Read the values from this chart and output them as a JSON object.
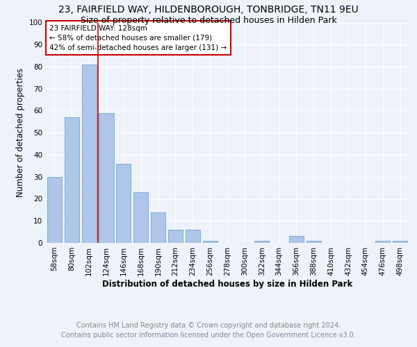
{
  "title": "23, FAIRFIELD WAY, HILDENBOROUGH, TONBRIDGE, TN11 9EU",
  "subtitle": "Size of property relative to detached houses in Hilden Park",
  "xlabel": "Distribution of detached houses by size in Hilden Park",
  "ylabel": "Number of detached properties",
  "footer_line1": "Contains HM Land Registry data © Crown copyright and database right 2024.",
  "footer_line2": "Contains public sector information licensed under the Open Government Licence v3.0.",
  "bar_labels": [
    "58sqm",
    "80sqm",
    "102sqm",
    "124sqm",
    "146sqm",
    "168sqm",
    "190sqm",
    "212sqm",
    "234sqm",
    "256sqm",
    "278sqm",
    "300sqm",
    "322sqm",
    "344sqm",
    "366sqm",
    "388sqm",
    "410sqm",
    "432sqm",
    "454sqm",
    "476sqm",
    "498sqm"
  ],
  "bar_values": [
    30,
    57,
    81,
    59,
    36,
    23,
    14,
    6,
    6,
    1,
    0,
    0,
    1,
    0,
    3,
    1,
    0,
    0,
    0,
    1,
    1
  ],
  "bar_color": "#aec6e8",
  "bar_edge_color": "#7aafd4",
  "ylim": [
    0,
    100
  ],
  "yticks": [
    0,
    10,
    20,
    30,
    40,
    50,
    60,
    70,
    80,
    90,
    100
  ],
  "property_line_color": "#cc0000",
  "annotation_text": "23 FAIRFIELD WAY: 128sqm\n← 58% of detached houses are smaller (179)\n42% of semi-detached houses are larger (131) →",
  "annotation_box_color": "#cc0000",
  "background_color": "#eef2f9",
  "plot_bg_color": "#eef2f9",
  "grid_color": "#ffffff",
  "title_fontsize": 10,
  "subtitle_fontsize": 9,
  "axis_label_fontsize": 8.5,
  "tick_fontsize": 7.5,
  "annotation_fontsize": 7.5,
  "footer_fontsize": 7
}
